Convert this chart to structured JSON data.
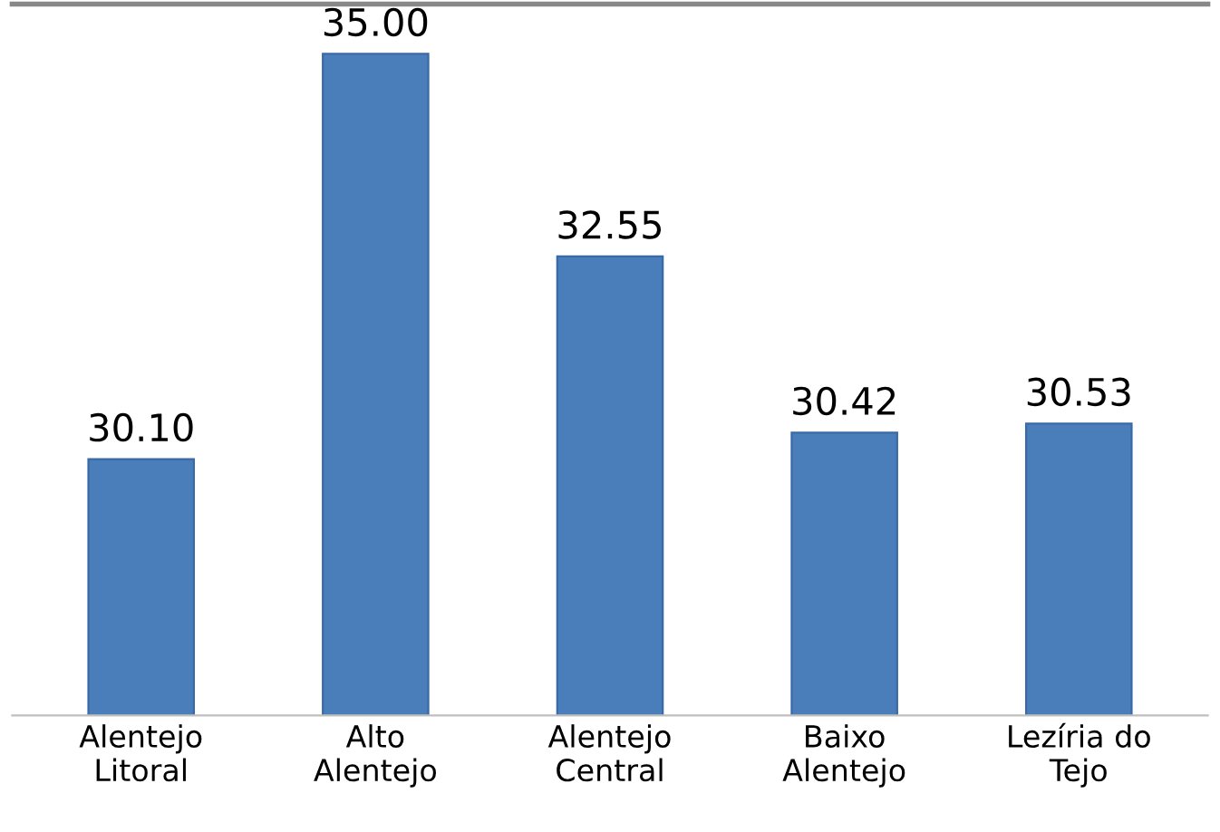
{
  "chart_data": {
    "type": "bar",
    "categories": [
      "Alentejo\nLitoral",
      "Alto\nAlentejo",
      "Alentejo\nCentral",
      "Baixo\nAlentejo",
      "Lezíria do\nTejo"
    ],
    "values": [
      30.1,
      35.0,
      32.55,
      30.42,
      30.53
    ],
    "value_labels": [
      "30.10",
      "35.00",
      "32.55",
      "30.42",
      "30.53"
    ],
    "color": "#4a7ebb",
    "ylim": [
      27,
      35.6
    ],
    "tick_labels": "x",
    "grid": false,
    "legend": false
  }
}
